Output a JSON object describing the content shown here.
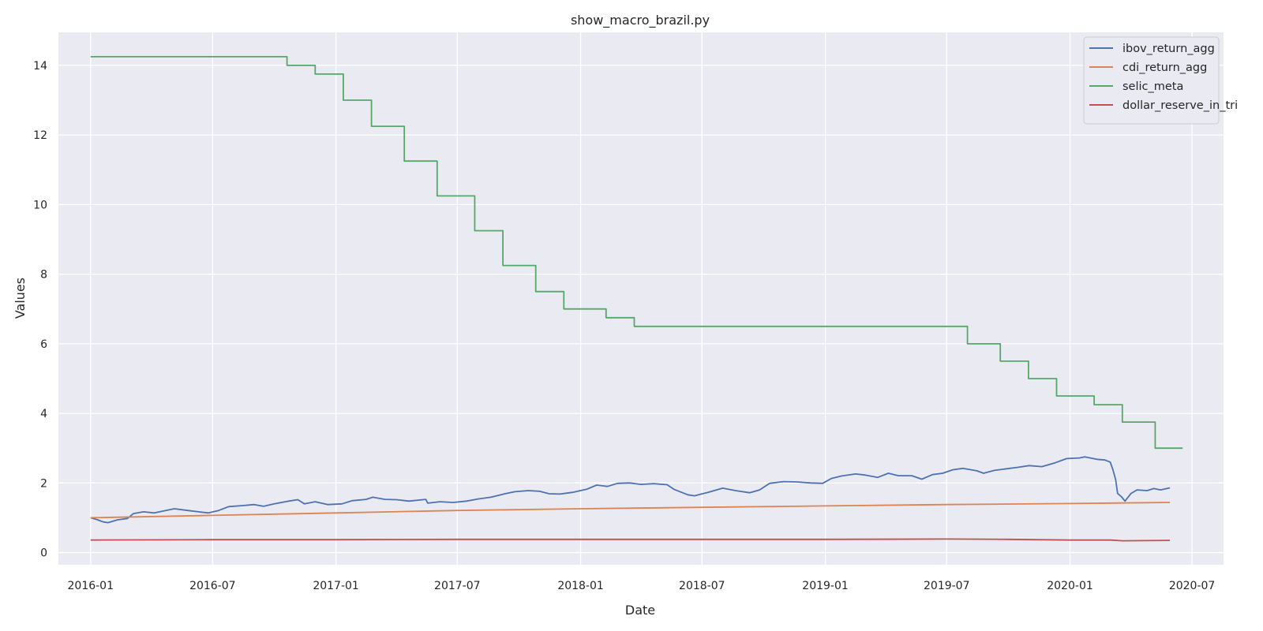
{
  "chart_data": {
    "type": "line",
    "title": "show_macro_brazil.py",
    "xlabel": "Date",
    "ylabel": "Values",
    "xlim": [
      "2015-11-14",
      "2020-08-17"
    ],
    "ylim": [
      -0.35,
      14.95
    ],
    "x_ticks": [
      {
        "date": "2016-01-01",
        "label": "2016-01"
      },
      {
        "date": "2016-07-01",
        "label": "2016-07"
      },
      {
        "date": "2017-01-01",
        "label": "2017-01"
      },
      {
        "date": "2017-07-01",
        "label": "2017-07"
      },
      {
        "date": "2018-01-01",
        "label": "2018-01"
      },
      {
        "date": "2018-07-01",
        "label": "2018-07"
      },
      {
        "date": "2019-01-01",
        "label": "2019-01"
      },
      {
        "date": "2019-07-01",
        "label": "2019-07"
      },
      {
        "date": "2020-01-01",
        "label": "2020-01"
      },
      {
        "date": "2020-07-01",
        "label": "2020-07"
      }
    ],
    "y_ticks": [
      {
        "value": 0,
        "label": "0"
      },
      {
        "value": 2,
        "label": "2"
      },
      {
        "value": 4,
        "label": "4"
      },
      {
        "value": 6,
        "label": "6"
      },
      {
        "value": 8,
        "label": "8"
      },
      {
        "value": 10,
        "label": "10"
      },
      {
        "value": 12,
        "label": "12"
      },
      {
        "value": 14,
        "label": "14"
      }
    ],
    "grid": true,
    "legend_position": "top-right",
    "colors": {
      "background": "#eaeaf2",
      "grid": "#ffffff"
    },
    "series": [
      {
        "name": "ibov_return_agg",
        "color": "#4c72b0",
        "points": [
          [
            "2016-01-01",
            1.0
          ],
          [
            "2016-01-10",
            0.95
          ],
          [
            "2016-01-20",
            0.88
          ],
          [
            "2016-01-27",
            0.86
          ],
          [
            "2016-02-10",
            0.94
          ],
          [
            "2016-02-25",
            0.98
          ],
          [
            "2016-03-05",
            1.12
          ],
          [
            "2016-03-20",
            1.17
          ],
          [
            "2016-04-05",
            1.14
          ],
          [
            "2016-04-25",
            1.22
          ],
          [
            "2016-05-05",
            1.26
          ],
          [
            "2016-05-25",
            1.21
          ],
          [
            "2016-06-10",
            1.17
          ],
          [
            "2016-06-25",
            1.14
          ],
          [
            "2016-07-10",
            1.21
          ],
          [
            "2016-07-25",
            1.32
          ],
          [
            "2016-08-15",
            1.35
          ],
          [
            "2016-09-01",
            1.38
          ],
          [
            "2016-09-15",
            1.33
          ],
          [
            "2016-10-01",
            1.4
          ],
          [
            "2016-10-20",
            1.47
          ],
          [
            "2016-11-05",
            1.52
          ],
          [
            "2016-11-15",
            1.4
          ],
          [
            "2016-12-01",
            1.46
          ],
          [
            "2016-12-20",
            1.38
          ],
          [
            "2017-01-10",
            1.4
          ],
          [
            "2017-01-25",
            1.49
          ],
          [
            "2017-02-15",
            1.53
          ],
          [
            "2017-02-25",
            1.59
          ],
          [
            "2017-03-15",
            1.53
          ],
          [
            "2017-04-01",
            1.52
          ],
          [
            "2017-04-20",
            1.48
          ],
          [
            "2017-05-15",
            1.53
          ],
          [
            "2017-05-18",
            1.42
          ],
          [
            "2017-06-05",
            1.46
          ],
          [
            "2017-06-25",
            1.44
          ],
          [
            "2017-07-15",
            1.48
          ],
          [
            "2017-08-01",
            1.54
          ],
          [
            "2017-08-20",
            1.59
          ],
          [
            "2017-09-10",
            1.69
          ],
          [
            "2017-09-25",
            1.75
          ],
          [
            "2017-10-15",
            1.78
          ],
          [
            "2017-11-01",
            1.76
          ],
          [
            "2017-11-15",
            1.69
          ],
          [
            "2017-12-01",
            1.68
          ],
          [
            "2017-12-20",
            1.73
          ],
          [
            "2018-01-10",
            1.82
          ],
          [
            "2018-01-25",
            1.94
          ],
          [
            "2018-02-10",
            1.9
          ],
          [
            "2018-02-25",
            1.99
          ],
          [
            "2018-03-15",
            2.0
          ],
          [
            "2018-04-01",
            1.96
          ],
          [
            "2018-04-20",
            1.98
          ],
          [
            "2018-05-10",
            1.95
          ],
          [
            "2018-05-20",
            1.82
          ],
          [
            "2018-06-10",
            1.66
          ],
          [
            "2018-06-20",
            1.63
          ],
          [
            "2018-07-10",
            1.73
          ],
          [
            "2018-08-01",
            1.85
          ],
          [
            "2018-08-20",
            1.78
          ],
          [
            "2018-09-10",
            1.72
          ],
          [
            "2018-09-25",
            1.8
          ],
          [
            "2018-10-10",
            1.99
          ],
          [
            "2018-10-30",
            2.04
          ],
          [
            "2018-11-20",
            2.03
          ],
          [
            "2018-12-10",
            2.0
          ],
          [
            "2018-12-28",
            1.99
          ],
          [
            "2019-01-10",
            2.13
          ],
          [
            "2019-01-25",
            2.2
          ],
          [
            "2019-02-15",
            2.26
          ],
          [
            "2019-03-01",
            2.23
          ],
          [
            "2019-03-20",
            2.16
          ],
          [
            "2019-04-05",
            2.28
          ],
          [
            "2019-04-20",
            2.21
          ],
          [
            "2019-05-10",
            2.21
          ],
          [
            "2019-05-25",
            2.11
          ],
          [
            "2019-06-10",
            2.24
          ],
          [
            "2019-06-25",
            2.28
          ],
          [
            "2019-07-10",
            2.38
          ],
          [
            "2019-07-25",
            2.42
          ],
          [
            "2019-08-15",
            2.35
          ],
          [
            "2019-08-25",
            2.28
          ],
          [
            "2019-09-10",
            2.36
          ],
          [
            "2019-09-25",
            2.4
          ],
          [
            "2019-10-15",
            2.45
          ],
          [
            "2019-11-01",
            2.5
          ],
          [
            "2019-11-20",
            2.47
          ],
          [
            "2019-12-10",
            2.58
          ],
          [
            "2019-12-27",
            2.7
          ],
          [
            "2020-01-15",
            2.72
          ],
          [
            "2020-01-23",
            2.75
          ],
          [
            "2020-02-10",
            2.68
          ],
          [
            "2020-02-22",
            2.66
          ],
          [
            "2020-03-01",
            2.6
          ],
          [
            "2020-03-05",
            2.38
          ],
          [
            "2020-03-09",
            2.1
          ],
          [
            "2020-03-12",
            1.7
          ],
          [
            "2020-03-18",
            1.6
          ],
          [
            "2020-03-23",
            1.48
          ],
          [
            "2020-04-01",
            1.7
          ],
          [
            "2020-04-10",
            1.8
          ],
          [
            "2020-04-25",
            1.78
          ],
          [
            "2020-05-05",
            1.84
          ],
          [
            "2020-05-15",
            1.8
          ],
          [
            "2020-05-29",
            1.86
          ]
        ]
      },
      {
        "name": "cdi_return_agg",
        "color": "#dd8452",
        "points": [
          [
            "2016-01-01",
            1.0
          ],
          [
            "2016-07-01",
            1.07
          ],
          [
            "2017-01-01",
            1.14
          ],
          [
            "2017-07-01",
            1.21
          ],
          [
            "2018-01-01",
            1.26
          ],
          [
            "2018-07-01",
            1.3
          ],
          [
            "2019-01-01",
            1.34
          ],
          [
            "2019-07-01",
            1.38
          ],
          [
            "2020-01-01",
            1.41
          ],
          [
            "2020-05-29",
            1.44
          ]
        ]
      },
      {
        "name": "selic_meta",
        "color": "#55a868",
        "steps": [
          [
            "2016-01-01",
            14.25
          ],
          [
            "2016-10-20",
            14.0
          ],
          [
            "2016-12-01",
            13.75
          ],
          [
            "2017-01-12",
            13.0
          ],
          [
            "2017-02-23",
            12.25
          ],
          [
            "2017-04-13",
            11.25
          ],
          [
            "2017-06-01",
            10.25
          ],
          [
            "2017-07-27",
            9.25
          ],
          [
            "2017-09-07",
            8.25
          ],
          [
            "2017-10-26",
            7.5
          ],
          [
            "2017-12-07",
            7.0
          ],
          [
            "2018-02-08",
            6.75
          ],
          [
            "2018-03-22",
            6.5
          ],
          [
            "2019-08-01",
            6.0
          ],
          [
            "2019-09-19",
            5.5
          ],
          [
            "2019-10-31",
            5.0
          ],
          [
            "2019-12-12",
            4.5
          ],
          [
            "2020-02-06",
            4.25
          ],
          [
            "2020-03-19",
            3.75
          ],
          [
            "2020-05-07",
            3.0
          ]
        ],
        "end": "2020-06-17"
      },
      {
        "name": "dollar_reserve_in_tri",
        "color": "#c44e52",
        "points": [
          [
            "2016-01-01",
            0.36
          ],
          [
            "2016-07-01",
            0.37
          ],
          [
            "2017-01-01",
            0.37
          ],
          [
            "2017-07-01",
            0.38
          ],
          [
            "2018-01-01",
            0.38
          ],
          [
            "2018-07-01",
            0.38
          ],
          [
            "2019-01-01",
            0.38
          ],
          [
            "2019-07-01",
            0.39
          ],
          [
            "2019-10-01",
            0.38
          ],
          [
            "2020-01-01",
            0.36
          ],
          [
            "2020-03-01",
            0.36
          ],
          [
            "2020-03-20",
            0.34
          ],
          [
            "2020-05-29",
            0.35
          ]
        ]
      }
    ]
  }
}
